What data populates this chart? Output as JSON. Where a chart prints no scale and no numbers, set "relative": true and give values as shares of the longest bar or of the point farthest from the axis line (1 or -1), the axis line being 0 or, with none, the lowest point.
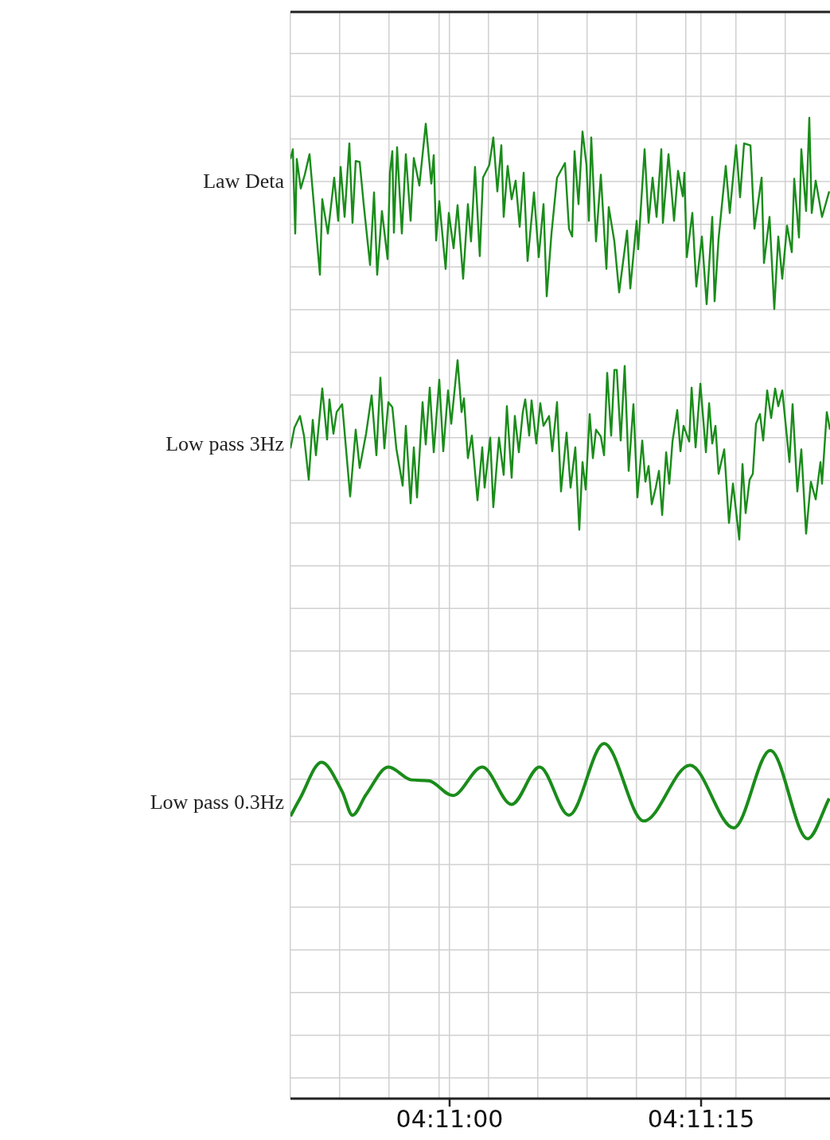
{
  "chart_data": {
    "type": "line",
    "relative": true,
    "grid": true,
    "marker": "none",
    "line_style": "solid",
    "xlim": [
      4.180696,
      4.189636
    ],
    "xticks": [
      {
        "value": 4.180696,
        "label": null
      },
      {
        "value": 4.181514,
        "label": null
      },
      {
        "value": 4.182331,
        "label": null
      },
      {
        "value": 4.183162,
        "label": null
      },
      {
        "value": 4.183333,
        "label": "04:11:00"
      },
      {
        "value": 4.183979,
        "label": null
      },
      {
        "value": 4.184797,
        "label": null
      },
      {
        "value": 4.185614,
        "label": null
      },
      {
        "value": 4.186432,
        "label": null
      },
      {
        "value": 4.18725,
        "label": null
      },
      {
        "value": 4.1875,
        "label": "04:11:15"
      },
      {
        "value": 4.18808,
        "label": null
      },
      {
        "value": 4.188898,
        "label": null
      }
    ],
    "series": [
      {
        "name": "Law Deta",
        "color": "#1a8c1a",
        "x": [
          4.180696,
          4.180736,
          4.180775,
          4.180801,
          4.180867,
          4.180933,
          4.181012,
          4.181065,
          4.181184,
          4.181223,
          4.181316,
          4.181421,
          4.181487,
          4.181527,
          4.181593,
          4.181672,
          4.181724,
          4.181777,
          4.181843,
          4.181909,
          4.182015,
          4.182081,
          4.182133,
          4.182212,
          4.182305,
          4.182344,
          4.182384,
          4.18241,
          4.182463,
          4.182542,
          4.182608,
          4.182687,
          4.18274,
          4.182832,
          4.182938,
          4.18303,
          4.18307,
          4.18311,
          4.183162,
          4.183267,
          4.18332,
          4.183399,
          4.183465,
          4.183557,
          4.183636,
          4.183688,
          4.183754,
          4.183833,
          4.183886,
          4.183991,
          4.184057,
          4.184124,
          4.18419,
          4.184229,
          4.184295,
          4.184361,
          4.184427,
          4.184494,
          4.18456,
          4.184625,
          4.184731,
          4.18481,
          4.184889,
          4.184942,
          4.185021,
          4.185113,
          4.185245,
          4.185311,
          4.185364,
          4.185403,
          4.185469,
          4.185535,
          4.185601,
          4.185641,
          4.18568,
          4.185759,
          4.185839,
          4.185931,
          4.18597,
          4.186063,
          4.186142,
          4.186274,
          4.186327,
          4.186432,
          4.186458,
          4.186564,
          4.18663,
          4.186696,
          4.186762,
          4.186841,
          4.186867,
          4.18696,
          4.187052,
          4.187118,
          4.187197,
          4.187223,
          4.187263,
          4.187355,
          4.187421,
          4.187513,
          4.187592,
          4.187685,
          4.187724,
          4.18779,
          4.187909,
          4.187975,
          4.18808,
          4.188146,
          4.188212,
          4.188318,
          4.188384,
          4.188503,
          4.188542,
          4.188634,
          4.188713,
          4.188779,
          4.188845,
          4.188924,
          4.189003,
          4.189043,
          4.189122,
          4.189161,
          4.18924,
          4.189293,
          4.189333,
          4.189399,
          4.189504,
          4.189623
        ],
        "values": [
          0.958,
          0.968,
          0.882,
          0.958,
          0.928,
          0.942,
          0.963,
          0.925,
          0.84,
          0.917,
          0.882,
          0.939,
          0.895,
          0.95,
          0.899,
          0.974,
          0.893,
          0.956,
          0.955,
          0.912,
          0.85,
          0.924,
          0.84,
          0.905,
          0.856,
          0.944,
          0.966,
          0.883,
          0.97,
          0.882,
          0.963,
          0.895,
          0.959,
          0.931,
          0.994,
          0.933,
          0.962,
          0.875,
          0.915,
          0.846,
          0.903,
          0.867,
          0.911,
          0.836,
          0.912,
          0.874,
          0.95,
          0.859,
          0.939,
          0.952,
          0.98,
          0.925,
          0.972,
          0.899,
          0.951,
          0.917,
          0.936,
          0.889,
          0.944,
          0.854,
          0.924,
          0.858,
          0.912,
          0.818,
          0.882,
          0.939,
          0.954,
          0.887,
          0.879,
          0.966,
          0.912,
          0.986,
          0.952,
          0.895,
          0.98,
          0.874,
          0.942,
          0.846,
          0.909,
          0.874,
          0.822,
          0.885,
          0.826,
          0.895,
          0.866,
          0.968,
          0.893,
          0.939,
          0.899,
          0.968,
          0.893,
          0.963,
          0.895,
          0.946,
          0.92,
          0.944,
          0.858,
          0.903,
          0.828,
          0.879,
          0.81,
          0.899,
          0.813,
          0.877,
          0.951,
          0.903,
          0.972,
          0.919,
          0.974,
          0.972,
          0.887,
          0.939,
          0.852,
          0.899,
          0.805,
          0.879,
          0.836,
          0.89,
          0.863,
          0.938,
          0.878,
          0.968,
          0.905,
          1.0,
          0.903,
          0.936,
          0.899,
          0.925
        ]
      },
      {
        "name": "Low pass 3Hz",
        "color": "#1a8c1a",
        "x": [
          4.180696,
          4.180762,
          4.180854,
          4.18092,
          4.180999,
          4.181065,
          4.181118,
          4.181223,
          4.181303,
          4.181342,
          4.181408,
          4.181461,
          4.181553,
          4.181685,
          4.181777,
          4.181843,
          4.181949,
          4.182041,
          4.18212,
          4.182186,
          4.182252,
          4.182318,
          4.182384,
          4.18245,
          4.182555,
          4.182608,
          4.182687,
          4.18274,
          4.182793,
          4.182885,
          4.182938,
          4.183004,
          4.18307,
          4.183162,
          4.183228,
          4.183307,
          4.18336,
          4.183465,
          4.183531,
          4.183571,
          4.183636,
          4.183702,
          4.183795,
          4.183874,
          4.183913,
          4.184006,
          4.184057,
          4.184151,
          4.184229,
          4.184282,
          4.184361,
          4.184414,
          4.18448,
          4.184546,
          4.184586,
          4.184652,
          4.184691,
          4.18477,
          4.184836,
          4.184889,
          4.184981,
          4.185034,
          4.185113,
          4.185179,
          4.185271,
          4.185337,
          4.185416,
          4.185482,
          4.185535,
          4.185588,
          4.185654,
          4.185707,
          4.185759,
          4.185839,
          4.185892,
          4.185944,
          4.18601,
          4.186063,
          4.186103,
          4.186168,
          4.186234,
          4.1863,
          4.186379,
          4.186445,
          4.186525,
          4.186577,
          4.18663,
          4.186683,
          4.186749,
          4.186802,
          4.186855,
          4.186921,
          4.186973,
          4.187026,
          4.187105,
          4.187158,
          4.18721,
          4.187303,
          4.187343,
          4.187409,
          4.187488,
          4.18758,
          4.187633,
          4.187685,
          4.187738,
          4.18779,
          4.187883,
          4.187962,
          4.188028,
          4.188133,
          4.188186,
          4.188238,
          4.188304,
          4.188357,
          4.18841,
          4.188476,
          4.188529,
          4.188595,
          4.188661,
          4.188727,
          4.188779,
          4.188845,
          4.188964,
          4.189016,
          4.189095,
          4.189161,
          4.18924,
          4.189319,
          4.189399,
          4.189478,
          4.189504,
          4.189583,
          4.189636
        ],
        "values": [
          0.663,
          0.684,
          0.696,
          0.676,
          0.631,
          0.692,
          0.656,
          0.724,
          0.672,
          0.713,
          0.678,
          0.7,
          0.708,
          0.614,
          0.682,
          0.643,
          0.678,
          0.717,
          0.656,
          0.735,
          0.663,
          0.71,
          0.705,
          0.663,
          0.625,
          0.686,
          0.607,
          0.664,
          0.613,
          0.71,
          0.667,
          0.725,
          0.659,
          0.733,
          0.66,
          0.722,
          0.688,
          0.753,
          0.7,
          0.714,
          0.653,
          0.676,
          0.61,
          0.664,
          0.623,
          0.674,
          0.603,
          0.674,
          0.636,
          0.706,
          0.633,
          0.696,
          0.659,
          0.7,
          0.713,
          0.676,
          0.712,
          0.668,
          0.709,
          0.686,
          0.696,
          0.66,
          0.71,
          0.619,
          0.679,
          0.623,
          0.664,
          0.58,
          0.649,
          0.621,
          0.698,
          0.653,
          0.682,
          0.675,
          0.656,
          0.74,
          0.676,
          0.743,
          0.743,
          0.671,
          0.747,
          0.64,
          0.708,
          0.613,
          0.671,
          0.629,
          0.645,
          0.606,
          0.623,
          0.64,
          0.595,
          0.659,
          0.627,
          0.67,
          0.702,
          0.66,
          0.686,
          0.67,
          0.725,
          0.664,
          0.729,
          0.659,
          0.709,
          0.668,
          0.686,
          0.637,
          0.662,
          0.587,
          0.627,
          0.57,
          0.647,
          0.597,
          0.631,
          0.637,
          0.688,
          0.698,
          0.671,
          0.722,
          0.694,
          0.724,
          0.706,
          0.722,
          0.649,
          0.708,
          0.619,
          0.662,
          0.576,
          0.629,
          0.611,
          0.649,
          0.627,
          0.7,
          0.682
        ]
      },
      {
        "name": "Low pass 0.3Hz",
        "color": "#1a8c1a",
        "x": [
          4.180696,
          4.180854,
          4.18121,
          4.181553,
          4.181724,
          4.181949,
          4.182318,
          4.1827,
          4.18299,
          4.183386,
          4.183874,
          4.184361,
          4.184823,
          4.185311,
          4.185892,
          4.186551,
          4.187316,
          4.188041,
          4.188647,
          4.189267,
          4.189623
        ],
        "values": [
          0.288,
          0.306,
          0.343,
          0.313,
          0.289,
          0.31,
          0.338,
          0.325,
          0.324,
          0.309,
          0.338,
          0.3,
          0.338,
          0.289,
          0.362,
          0.283,
          0.34,
          0.276,
          0.355,
          0.265,
          0.306
        ]
      }
    ]
  }
}
